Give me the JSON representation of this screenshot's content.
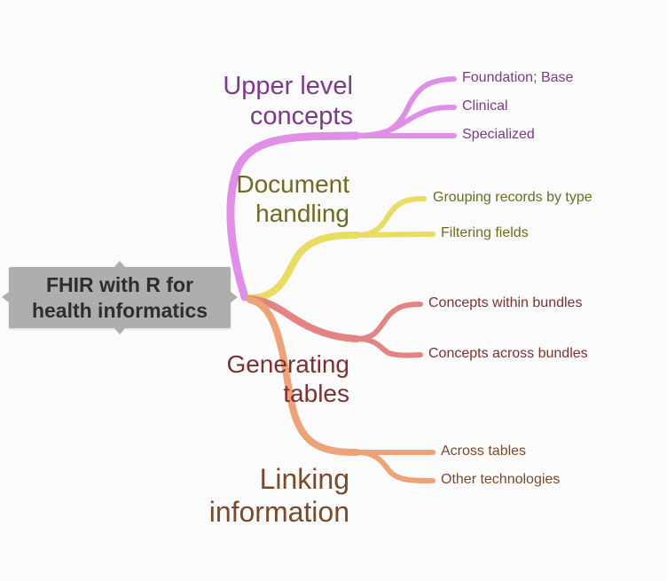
{
  "root": {
    "label": "FHIR with R for\nhealth informatics"
  },
  "branches": [
    {
      "id": "upper",
      "label": "Upper level\nconcepts",
      "color": "#df8fe6",
      "text_color": "#7b3a8a",
      "children": [
        "Foundation; Base",
        "Clinical",
        "Specialized"
      ]
    },
    {
      "id": "document",
      "label": "Document\nhandling",
      "color": "#e8dc62",
      "text_color": "#6f6a20",
      "children": [
        "Grouping records by type",
        "Filtering fields"
      ]
    },
    {
      "id": "tables",
      "label": "Generating\ntables",
      "color": "#e48383",
      "text_color": "#7a3232",
      "children": [
        "Concepts within bundles",
        "Concepts across bundles"
      ]
    },
    {
      "id": "linking",
      "label": "Linking\ninformation",
      "color": "#eda377",
      "text_color": "#7a4a2a",
      "children": [
        "Across tables",
        "Other technologies"
      ]
    }
  ]
}
